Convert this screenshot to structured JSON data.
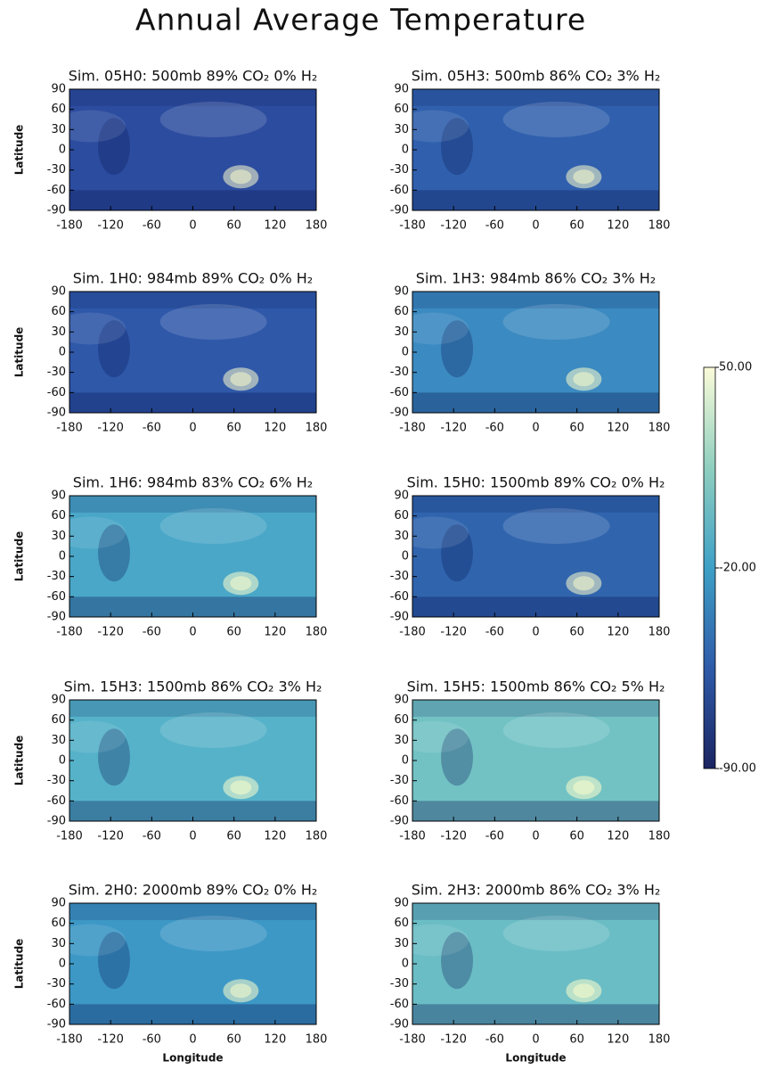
{
  "title": "Annual Average Temperature",
  "chart_data": [
    {
      "type": "map",
      "title": "Sim. 05H0: 500mb 89% CO₂ 0% H₂",
      "color": "#2c4c9f",
      "ylabel": "Latitude",
      "xlim": [
        -180,
        180
      ],
      "ylim": [
        -90,
        90
      ],
      "xticks": [
        -180,
        -120,
        -60,
        0,
        60,
        120,
        180
      ],
      "yticks": [
        90,
        60,
        30,
        0,
        -30,
        -60,
        -90
      ]
    },
    {
      "type": "map",
      "title": "Sim. 05H3: 500mb 86% CO₂ 3% H₂",
      "color": "#3060ad",
      "xlim": [
        -180,
        180
      ],
      "ylim": [
        -90,
        90
      ],
      "xticks": [
        -180,
        -120,
        -60,
        0,
        60,
        120,
        180
      ],
      "yticks": [
        90,
        60,
        30,
        0,
        -30,
        -60,
        -90
      ]
    },
    {
      "type": "map",
      "title": "Sim. 1H0: 984mb 89% CO₂ 0% H₂",
      "color": "#2f58a9",
      "ylabel": "Latitude",
      "xlim": [
        -180,
        180
      ],
      "ylim": [
        -90,
        90
      ],
      "xticks": [
        -180,
        -120,
        -60,
        0,
        60,
        120,
        180
      ],
      "yticks": [
        90,
        60,
        30,
        0,
        -30,
        -60,
        -90
      ]
    },
    {
      "type": "map",
      "title": "Sim. 1H3: 984mb 86% CO₂ 3% H₂",
      "color": "#3b8ac1",
      "xlim": [
        -180,
        180
      ],
      "ylim": [
        -90,
        90
      ],
      "xticks": [
        -180,
        -120,
        -60,
        0,
        60,
        120,
        180
      ],
      "yticks": [
        90,
        60,
        30,
        0,
        -30,
        -60,
        -90
      ]
    },
    {
      "type": "map",
      "title": "Sim. 1H6: 984mb 83% CO₂ 6% H₂",
      "color": "#4aa7c8",
      "ylabel": "Latitude",
      "xlim": [
        -180,
        180
      ],
      "ylim": [
        -90,
        90
      ],
      "xticks": [
        -180,
        -120,
        -60,
        0,
        60,
        120,
        180
      ],
      "yticks": [
        90,
        60,
        30,
        0,
        -30,
        -60,
        -90
      ]
    },
    {
      "type": "map",
      "title": "Sim. 15H0: 1500mb 89% CO₂ 0% H₂",
      "color": "#3065ae",
      "xlim": [
        -180,
        180
      ],
      "ylim": [
        -90,
        90
      ],
      "xticks": [
        -180,
        -120,
        -60,
        0,
        60,
        120,
        180
      ],
      "yticks": [
        90,
        60,
        30,
        0,
        -30,
        -60,
        -90
      ]
    },
    {
      "type": "map",
      "title": "Sim. 15H3: 1500mb 86% CO₂ 3% H₂",
      "color": "#56b2c9",
      "ylabel": "Latitude",
      "xlim": [
        -180,
        180
      ],
      "ylim": [
        -90,
        90
      ],
      "xticks": [
        -180,
        -120,
        -60,
        0,
        60,
        120,
        180
      ],
      "yticks": [
        90,
        60,
        30,
        0,
        -30,
        -60,
        -90
      ]
    },
    {
      "type": "map",
      "title": "Sim. 15H5: 1500mb 86% CO₂ 5% H₂",
      "color": "#72c2c4",
      "xlim": [
        -180,
        180
      ],
      "ylim": [
        -90,
        90
      ],
      "xticks": [
        -180,
        -120,
        -60,
        0,
        60,
        120,
        180
      ],
      "yticks": [
        90,
        60,
        30,
        0,
        -30,
        -60,
        -90
      ]
    },
    {
      "type": "map",
      "title": "Sim. 2H0: 2000mb 89% CO₂ 0% H₂",
      "color": "#3d98c6",
      "ylabel": "Latitude",
      "xlabel": "Longitude",
      "xlim": [
        -180,
        180
      ],
      "ylim": [
        -90,
        90
      ],
      "xticks": [
        -180,
        -120,
        -60,
        0,
        60,
        120,
        180
      ],
      "yticks": [
        90,
        60,
        30,
        0,
        -30,
        -60,
        -90
      ]
    },
    {
      "type": "map",
      "title": "Sim. 2H3: 2000mb 86% CO₂ 3% H₂",
      "color": "#6abdc5",
      "xlabel": "Longitude",
      "xlim": [
        -180,
        180
      ],
      "ylim": [
        -90,
        90
      ],
      "xticks": [
        -180,
        -120,
        -60,
        0,
        60,
        120,
        180
      ],
      "yticks": [
        90,
        60,
        30,
        0,
        -30,
        -60,
        -90
      ]
    },
    {
      "type": "colorbar",
      "colors": [
        "#1b2462",
        "#2e5aa8",
        "#3ea0c6",
        "#8fcfbf",
        "#fbfbd9"
      ],
      "ylim": [
        -90,
        50
      ],
      "yticks": [
        {
          "value": 50,
          "label": "50.00"
        },
        {
          "value": -20,
          "label": "-20.00"
        },
        {
          "value": -90,
          "label": "-90.00"
        }
      ]
    }
  ]
}
